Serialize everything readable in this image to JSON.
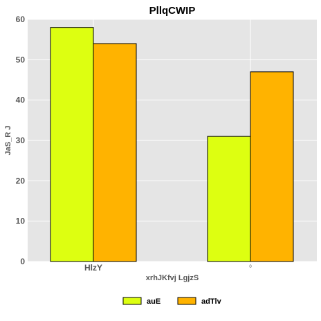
{
  "chart_data": {
    "type": "bar",
    "title": "PllqCWIP",
    "xlabel": "xrhJKfvj LgjzS",
    "ylabel": "JaS_R J",
    "categories": [
      "HlzY",
      "0"
    ],
    "series": [
      {
        "name": "auE",
        "values": [
          58,
          31
        ],
        "color": "#ddff11"
      },
      {
        "name": "adTlv",
        "values": [
          54,
          47
        ],
        "color": "#ffb300"
      }
    ],
    "ylim": [
      0,
      60
    ],
    "yticks": [
      "0",
      "10",
      "20",
      "30",
      "40",
      "50",
      "60"
    ],
    "grid": true,
    "background": "#e5e5e5",
    "legend_position": "bottom"
  }
}
